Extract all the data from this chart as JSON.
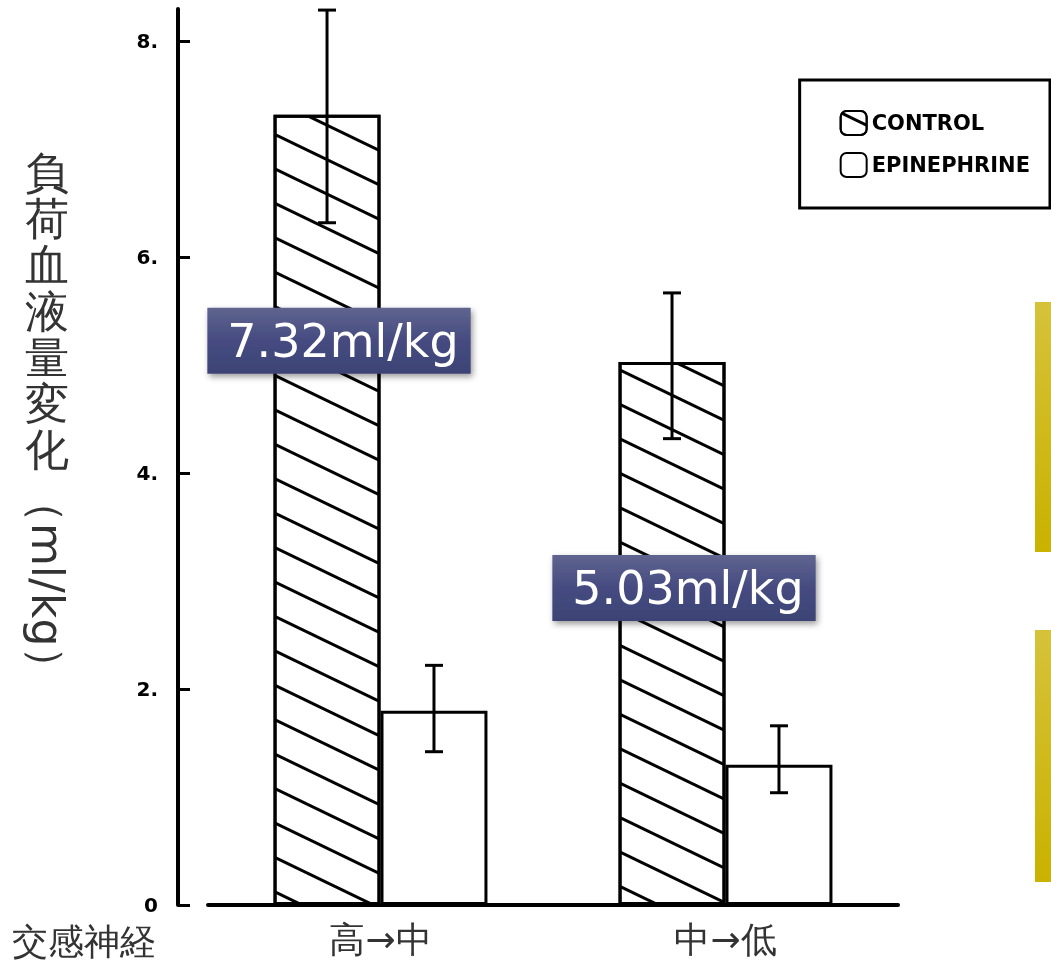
{
  "chart_data": {
    "type": "bar",
    "xlabel": "交感神経",
    "ylabel": "負荷血液量変化（ml/kg）",
    "categories": [
      "高→中",
      "中→低"
    ],
    "series": [
      {
        "name": "CONTROL",
        "color": "#ffffff",
        "values": [
          7.32,
          5.03
        ],
        "errors": [
          [
            6.32,
            8.29
          ],
          [
            4.32,
            5.67
          ]
        ]
      },
      {
        "name": "EPINEPHRINE",
        "color": "#ffffff",
        "values": [
          1.8,
          1.3
        ],
        "errors": [
          [
            1.42,
            2.22
          ],
          [
            1.04,
            1.66
          ]
        ]
      }
    ],
    "ylim": [
      0,
      8.3
    ],
    "yticks": [
      0,
      {
        "value": 2,
        "label": "2."
      },
      {
        "value": 4,
        "label": "4."
      },
      {
        "value": 6,
        "label": "6."
      },
      {
        "value": 8,
        "label": "8."
      }
    ],
    "annotations": [
      "7.32ml/kg",
      "5.03ml/kg"
    ],
    "grid": false,
    "legend": "top right"
  }
}
